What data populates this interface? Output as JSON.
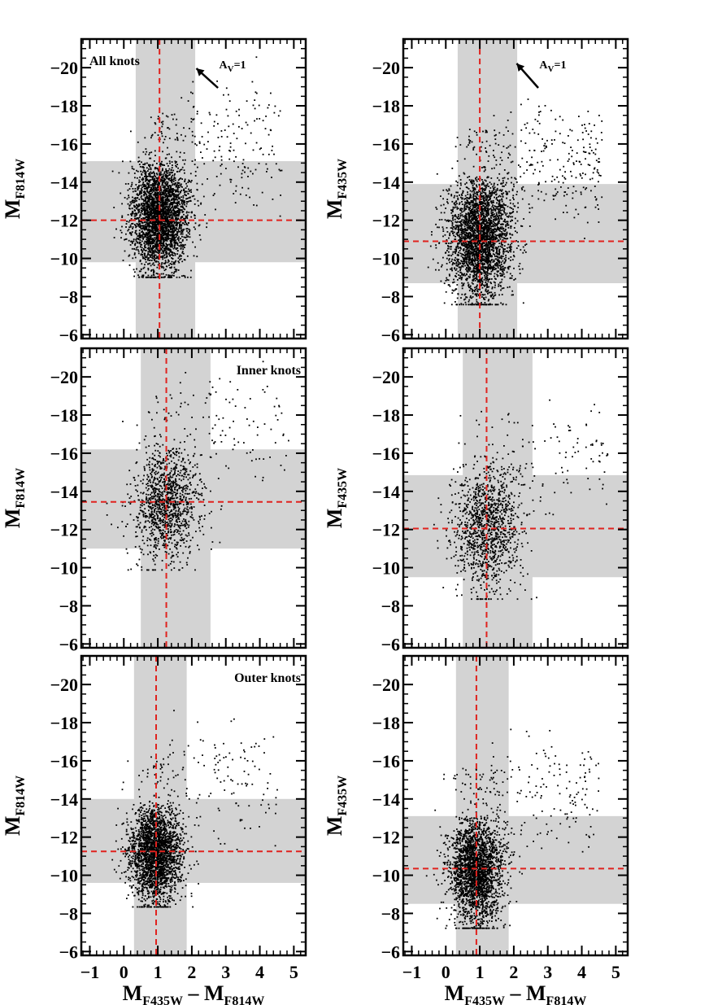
{
  "chart_data": [
    {
      "type": "scatter",
      "panel_label": "All knots",
      "arrow_label": "A",
      "arrow_label_sub": "V",
      "arrow_label_tail": "=1",
      "arrow_vector": {
        "dx": -0.7,
        "dy": -0.8
      },
      "xlabel": "",
      "ylabel": "M",
      "ylabel_sub": "F814W",
      "xlim": [
        -1.25,
        5.35
      ],
      "ylim": [
        -5.8,
        -21.5
      ],
      "xticks": [
        -1,
        0,
        1,
        2,
        3,
        4,
        5
      ],
      "yticks": [
        -20,
        -18,
        -16,
        -14,
        -12,
        -10,
        -8,
        -6
      ],
      "show_xticklabels": false,
      "shaded_x": [
        0.35,
        2.1
      ],
      "shaded_y": [
        -9.8,
        -15.1
      ],
      "median_x": 1.05,
      "median_y": -12.0,
      "points": {
        "n": 3200,
        "x_mu": 1.05,
        "x_sd": 0.42,
        "y_mu": -12.2,
        "y_sd": 1.45,
        "tail_frac": 0.06,
        "seed": 11
      }
    },
    {
      "type": "scatter",
      "panel_label": "",
      "arrow_label": "A",
      "arrow_label_sub": "V",
      "arrow_label_tail": "=1",
      "arrow_vector": {
        "dx": -0.7,
        "dy": -1.0
      },
      "xlabel": "",
      "ylabel": "M",
      "ylabel_sub": "F435W",
      "xlim": [
        -1.25,
        5.35
      ],
      "ylim": [
        -5.8,
        -21.5
      ],
      "xticks": [
        -1,
        0,
        1,
        2,
        3,
        4,
        5
      ],
      "yticks": [
        -20,
        -18,
        -16,
        -14,
        -12,
        -10,
        -8,
        -6
      ],
      "show_xticklabels": false,
      "shaded_x": [
        0.35,
        2.1
      ],
      "shaded_y": [
        -8.7,
        -13.9
      ],
      "median_x": 1.0,
      "median_y": -10.9,
      "points": {
        "n": 3200,
        "x_mu": 1.0,
        "x_sd": 0.45,
        "y_mu": -11.1,
        "y_sd": 1.6,
        "tail_frac": 0.08,
        "seed": 23
      }
    },
    {
      "type": "scatter",
      "panel_label": "Inner knots",
      "arrow_label": "",
      "arrow_label_sub": "",
      "arrow_label_tail": "",
      "arrow_vector": null,
      "xlabel": "",
      "ylabel": "M",
      "ylabel_sub": "F814W",
      "xlim": [
        -1.25,
        5.35
      ],
      "ylim": [
        -5.8,
        -21.5
      ],
      "xticks": [
        -1,
        0,
        1,
        2,
        3,
        4,
        5
      ],
      "yticks": [
        -20,
        -18,
        -16,
        -14,
        -12,
        -10,
        -8,
        -6
      ],
      "show_xticklabels": false,
      "shaded_x": [
        0.5,
        2.55
      ],
      "shaded_y": [
        -11.0,
        -16.2
      ],
      "median_x": 1.25,
      "median_y": -13.45,
      "points": {
        "n": 1300,
        "x_mu": 1.25,
        "x_sd": 0.48,
        "y_mu": -13.4,
        "y_sd": 1.6,
        "tail_frac": 0.08,
        "seed": 37
      }
    },
    {
      "type": "scatter",
      "panel_label": "",
      "arrow_label": "",
      "arrow_label_sub": "",
      "arrow_label_tail": "",
      "arrow_vector": null,
      "xlabel": "",
      "ylabel": "M",
      "ylabel_sub": "F435W",
      "xlim": [
        -1.25,
        5.35
      ],
      "ylim": [
        -5.8,
        -21.5
      ],
      "xticks": [
        -1,
        0,
        1,
        2,
        3,
        4,
        5
      ],
      "yticks": [
        -20,
        -18,
        -16,
        -14,
        -12,
        -10,
        -8,
        -6
      ],
      "show_xticklabels": false,
      "shaded_x": [
        0.5,
        2.55
      ],
      "shaded_y": [
        -9.5,
        -14.85
      ],
      "median_x": 1.2,
      "median_y": -12.05,
      "points": {
        "n": 1300,
        "x_mu": 1.2,
        "x_sd": 0.5,
        "y_mu": -12.2,
        "y_sd": 1.75,
        "tail_frac": 0.08,
        "seed": 41
      }
    },
    {
      "type": "scatter",
      "panel_label": "Outer knots",
      "arrow_label": "",
      "arrow_label_sub": "",
      "arrow_label_tail": "",
      "arrow_vector": null,
      "xlabel": "M",
      "xlabel_sub1": "F435W",
      "xlabel_mid": " – M",
      "xlabel_sub2": "F814W",
      "ylabel": "M",
      "ylabel_sub": "F814W",
      "xlim": [
        -1.25,
        5.35
      ],
      "ylim": [
        -5.8,
        -21.5
      ],
      "xticks": [
        -1,
        0,
        1,
        2,
        3,
        4,
        5
      ],
      "yticks": [
        -20,
        -18,
        -16,
        -14,
        -12,
        -10,
        -8,
        -6
      ],
      "show_xticklabels": true,
      "xticklabels": [
        "−1",
        "0",
        "1",
        "2",
        "3",
        "4",
        "5"
      ],
      "shaded_x": [
        0.3,
        1.85
      ],
      "shaded_y": [
        -9.6,
        -14.0
      ],
      "median_x": 0.95,
      "median_y": -11.25,
      "points": {
        "n": 2600,
        "x_mu": 0.95,
        "x_sd": 0.38,
        "y_mu": -11.2,
        "y_sd": 1.3,
        "tail_frac": 0.05,
        "seed": 53
      }
    },
    {
      "type": "scatter",
      "panel_label": "",
      "arrow_label": "",
      "arrow_label_sub": "",
      "arrow_label_tail": "",
      "arrow_vector": null,
      "xlabel": "M",
      "xlabel_sub1": "F435W",
      "xlabel_mid": " – M",
      "xlabel_sub2": "F814W",
      "ylabel": "M",
      "ylabel_sub": "F435W",
      "xlim": [
        -1.25,
        5.35
      ],
      "ylim": [
        -5.8,
        -21.5
      ],
      "xticks": [
        -1,
        0,
        1,
        2,
        3,
        4,
        5
      ],
      "yticks": [
        -20,
        -18,
        -16,
        -14,
        -12,
        -10,
        -8,
        -6
      ],
      "show_xticklabels": true,
      "xticklabels": [
        "−1",
        "0",
        "1",
        "2",
        "3",
        "4",
        "5"
      ],
      "shaded_x": [
        0.3,
        1.85
      ],
      "shaded_y": [
        -8.5,
        -13.1
      ],
      "median_x": 0.9,
      "median_y": -10.35,
      "points": {
        "n": 2600,
        "x_mu": 0.9,
        "x_sd": 0.4,
        "y_mu": -10.3,
        "y_sd": 1.4,
        "tail_frac": 0.06,
        "seed": 67
      }
    }
  ],
  "colors": {
    "shade": "#d3d3d3",
    "median_line": "#e0221e",
    "points": "#000000",
    "axes": "#000000"
  },
  "ytick_labels": [
    "−20",
    "−18",
    "−16",
    "−14",
    "−12",
    "−10",
    "−8",
    "−6"
  ]
}
